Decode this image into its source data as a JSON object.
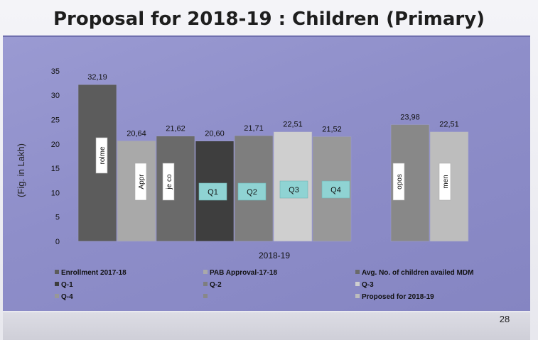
{
  "slide": {
    "title": "Proposal for 2018-19 : Children (Primary)",
    "page_number": "28"
  },
  "chart_data": {
    "type": "bar",
    "title": "",
    "xlabel": "2018-19",
    "ylabel": "(Fig. in Lakh)",
    "ylim": [
      0,
      35
    ],
    "yticks": [
      0,
      5,
      10,
      15,
      20,
      25,
      30,
      35
    ],
    "grid": false,
    "legend_position": "bottom",
    "series": [
      {
        "name": "Enrollment 2017-18",
        "value": 32.19,
        "value_label": "32,19",
        "inner_label": "rolme",
        "color": "#5c5c5c"
      },
      {
        "name": "PAB Approval-17-18",
        "value": 20.64,
        "value_label": "20,64",
        "inner_label": "Appr",
        "color": "#a9a9a9"
      },
      {
        "name": "Avg. No. of children availed MDM",
        "value": 21.62,
        "value_label": "21,62",
        "inner_label": "je co",
        "color": "#6a6a6a"
      },
      {
        "name": "Q-1",
        "value": 20.6,
        "value_label": "20,60",
        "inner_label": "Q1",
        "color": "#3e3e3e"
      },
      {
        "name": "Q-2",
        "value": 21.71,
        "value_label": "21,71",
        "inner_label": "Q2",
        "color": "#7e7e7e"
      },
      {
        "name": "Q-3",
        "value": 22.51,
        "value_label": "22,51",
        "inner_label": "Q3",
        "color": "#cfcfcf"
      },
      {
        "name": "Q-4",
        "value": 21.52,
        "value_label": "21,52",
        "inner_label": "Q4",
        "color": "#989898"
      },
      {
        "name": "",
        "value": 23.98,
        "value_label": "23,98",
        "inner_label": "opos",
        "color": "#888888"
      },
      {
        "name": "Proposed for 2018-19",
        "value": 22.51,
        "value_label": "22,51",
        "inner_label": "men",
        "color": "#bdbdbd"
      }
    ]
  }
}
